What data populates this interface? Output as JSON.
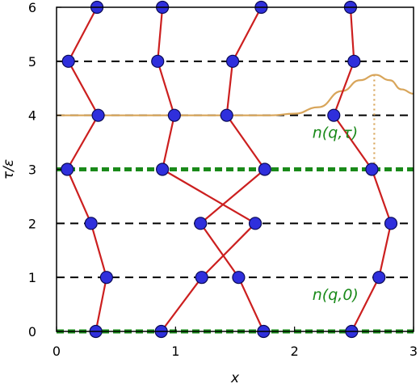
{
  "chart_data": {
    "type": "line",
    "xlabel": "x",
    "ylabel": "τ/ε",
    "xlim": [
      0,
      3
    ],
    "ylim": [
      0,
      6
    ],
    "xticks": [
      "0",
      "1",
      "2",
      "3"
    ],
    "yticks": [
      "0",
      "1",
      "2",
      "3",
      "4",
      "5",
      "6"
    ],
    "grid": "dashed horizontal lines at each integer τ/ε",
    "colors": {
      "worldline": "#cc1f1f",
      "bead_fill": "#2f2fdc",
      "bead_edge": "#0a0a55",
      "time_slice": "#1a8a1a",
      "density": "#d8a55a",
      "grid": "#000000"
    },
    "highlighted_slices": [
      0,
      3
    ],
    "annotations": [
      {
        "text": "n(q,0)",
        "x": 2.15,
        "y": 0.58
      },
      {
        "text": "n(q,τ)",
        "x": 2.15,
        "y": 3.58
      }
    ],
    "series": [
      {
        "tau": [
          0,
          1,
          2,
          3,
          4,
          5,
          6
        ],
        "x": [
          0.33,
          0.42,
          0.29,
          0.09,
          0.35,
          0.1,
          0.34
        ]
      },
      {
        "tau": [
          0,
          1,
          2,
          3,
          4,
          5,
          6
        ],
        "x": [
          0.88,
          1.22,
          1.67,
          0.89,
          0.99,
          0.85,
          0.89
        ]
      },
      {
        "tau": [
          0,
          1,
          2,
          3,
          4,
          5,
          6
        ],
        "x": [
          1.74,
          1.53,
          1.21,
          1.75,
          1.43,
          1.48,
          1.72
        ]
      },
      {
        "tau": [
          0,
          1,
          2,
          3,
          4,
          5,
          6
        ],
        "x": [
          2.48,
          2.71,
          2.81,
          2.65,
          2.33,
          2.5,
          2.47
        ]
      }
    ],
    "density_curve": {
      "baseline_tau": 4,
      "x": [
        0.0,
        1.0,
        1.8,
        2.0,
        2.2,
        2.4,
        2.55,
        2.68,
        2.8,
        2.9,
        3.0
      ],
      "tau": [
        4.0,
        4.0,
        4.0,
        4.03,
        4.15,
        4.45,
        4.65,
        4.75,
        4.65,
        4.48,
        4.4
      ],
      "peak_x": 2.67
    }
  }
}
